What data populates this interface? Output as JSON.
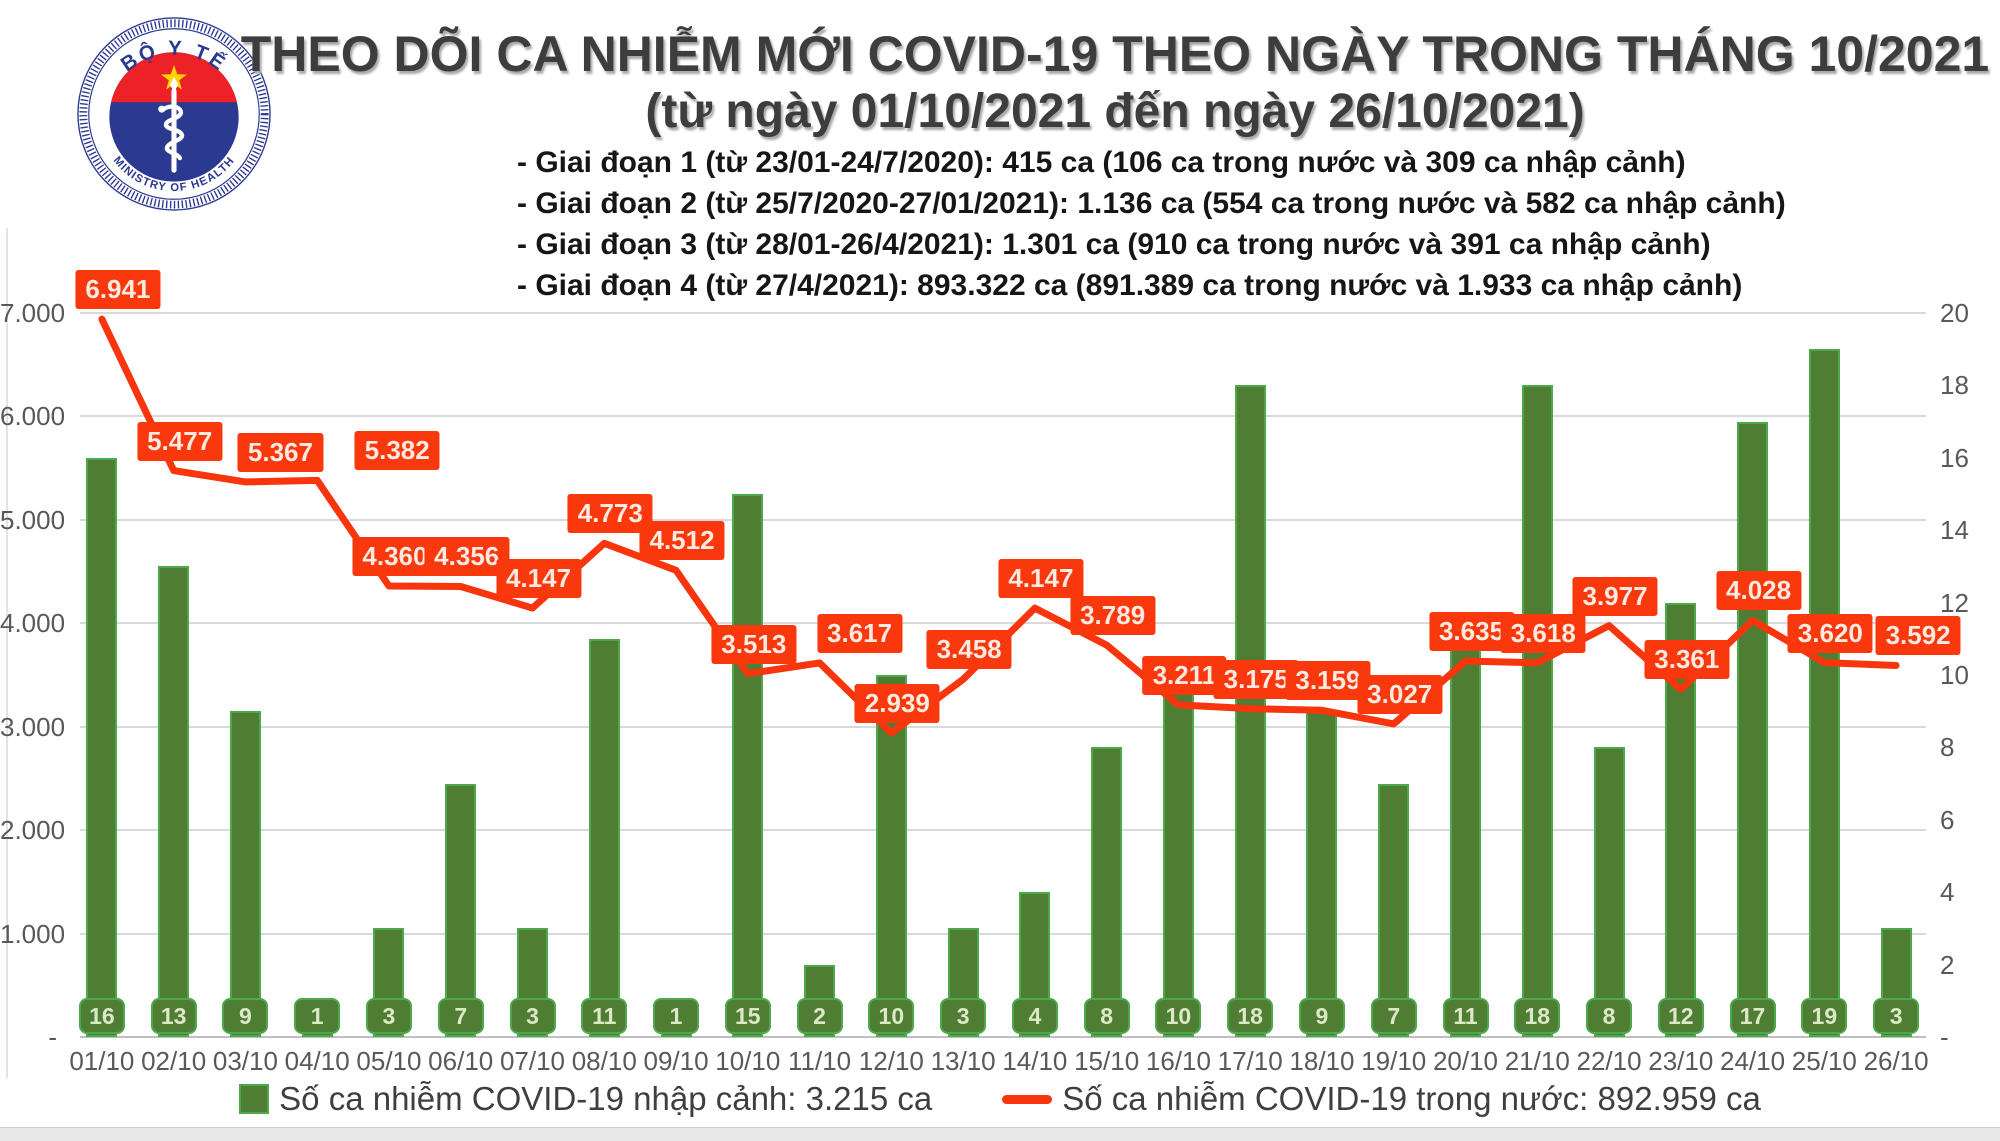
{
  "logo": {
    "top_text": "BỘ Y TẾ",
    "bottom_text": "MINISTRY OF HEALTH"
  },
  "header": {
    "title": "THEO DÕI CA NHIỄM MỚI COVID-19 THEO NGÀY TRONG THÁNG 10/2021",
    "subtitle": "(từ ngày 01/10/2021 đến ngày 26/10/2021)"
  },
  "notes": [
    "- Giai đoạn 1 (từ 23/01-24/7/2020): 415 ca (106 ca trong nước và 309 ca nhập cảnh)",
    "- Giai đoạn 2 (từ 25/7/2020-27/01/2021): 1.136 ca (554 ca trong nước và 582 ca nhập cảnh)",
    "- Giai đoạn 3 (từ 28/01-26/4/2021): 1.301 ca (910 ca trong nước và 391 ca nhập cảnh)",
    "- Giai đoạn 4 (từ 27/4/2021): 893.322 ca (891.389 ca trong nước và 1.933 ca nhập cảnh)"
  ],
  "chart_data": {
    "type": "bar+line combo",
    "categories": [
      "01/10",
      "02/10",
      "03/10",
      "04/10",
      "05/10",
      "06/10",
      "07/10",
      "08/10",
      "09/10",
      "10/10",
      "11/10",
      "12/10",
      "13/10",
      "14/10",
      "15/10",
      "16/10",
      "17/10",
      "18/10",
      "19/10",
      "20/10",
      "21/10",
      "22/10",
      "23/10",
      "24/10",
      "25/10",
      "26/10"
    ],
    "series": [
      {
        "name": "Số ca nhiễm COVID-19 nhập cảnh",
        "type": "bar",
        "axis": "right",
        "color": "#4E7D33",
        "border_color": "#4CA94C",
        "values": [
          16,
          13,
          9,
          1,
          3,
          7,
          3,
          11,
          1,
          15,
          2,
          10,
          3,
          4,
          8,
          10,
          18,
          9,
          7,
          11,
          18,
          8,
          12,
          17,
          19,
          3
        ]
      },
      {
        "name": "Số ca nhiễm COVID-19 trong nước",
        "type": "line",
        "axis": "left",
        "color": "#F8350C",
        "label_bg": "#FA380D",
        "values": [
          6941,
          5477,
          5367,
          5382,
          4360,
          4356,
          4147,
          4773,
          4512,
          3513,
          3617,
          2939,
          3458,
          4147,
          3789,
          3211,
          3175,
          3159,
          3027,
          3635,
          3618,
          3977,
          3361,
          4028,
          3620,
          3592
        ],
        "labels": [
          "6.941",
          "5.477",
          "5.367",
          "5.382",
          "4.360",
          "4.356",
          "4.147",
          "4.773",
          "4.512",
          "3.513",
          "3.617",
          "2.939",
          "3.458",
          "4.147",
          "3.789",
          "3.211",
          "3.175",
          "3.159",
          "3.027",
          "3.635",
          "3.618",
          "3.977",
          "3.361",
          "4.028",
          "3.620",
          "3.592"
        ]
      }
    ],
    "left_axis": {
      "max": 7000,
      "ticks": [
        {
          "label": "7.000",
          "value": 7000
        },
        {
          "label": "6.000",
          "value": 6000
        },
        {
          "label": "5.000",
          "value": 5000
        },
        {
          "label": "4.000",
          "value": 4000
        },
        {
          "label": "3.000",
          "value": 3000
        },
        {
          "label": "2.000",
          "value": 2000
        },
        {
          "label": "1.000",
          "value": 1000
        },
        {
          "label": "-",
          "value": 0
        }
      ]
    },
    "right_axis": {
      "max": 20,
      "ticks": [
        {
          "label": "20",
          "value": 20
        },
        {
          "label": "18",
          "value": 18
        },
        {
          "label": "16",
          "value": 16
        },
        {
          "label": "14",
          "value": 14
        },
        {
          "label": "12",
          "value": 12
        },
        {
          "label": "10",
          "value": 10
        },
        {
          "label": "8",
          "value": 8
        },
        {
          "label": "6",
          "value": 6
        },
        {
          "label": "4",
          "value": 4
        },
        {
          "label": "2",
          "value": 2
        },
        {
          "label": "-",
          "value": 0
        }
      ]
    },
    "grid": true,
    "legend_position": "bottom"
  },
  "legend": {
    "items": [
      {
        "label": "Số ca nhiễm COVID-19 nhập cảnh: 3.215 ca",
        "marker": "bar-square",
        "color": "#4E7D33"
      },
      {
        "label": "Số ca nhiễm COVID-19 trong nước: 892.959 ca",
        "marker": "line-dash",
        "color": "#F8350C"
      }
    ]
  }
}
